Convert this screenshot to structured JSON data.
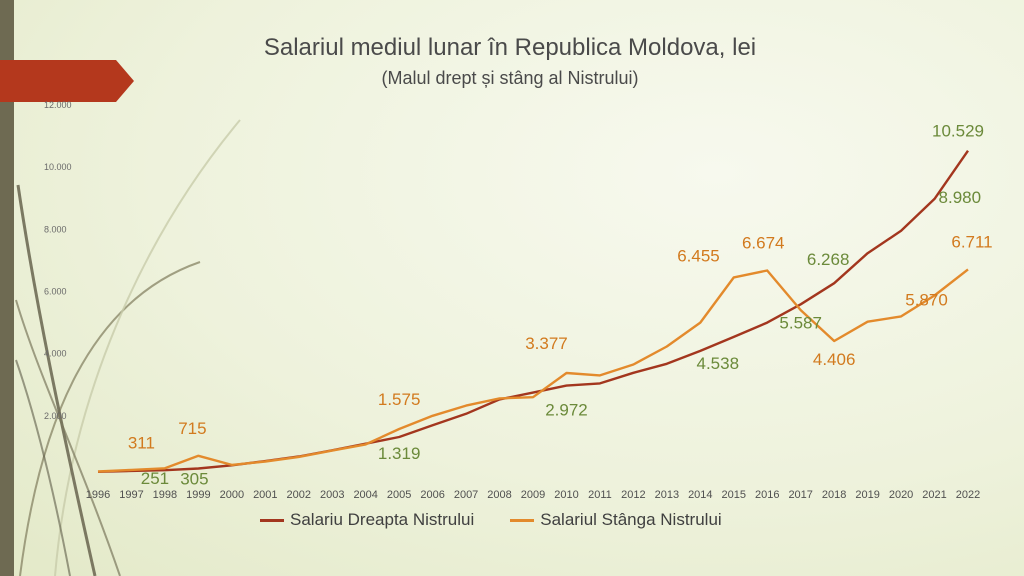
{
  "title": "Salariul mediul lunar în Republica Moldova, lei",
  "subtitle": "(Malul drept și stâng al Nistrului)",
  "chart_data": {
    "type": "line",
    "x": [
      "1996",
      "1997",
      "1998",
      "1999",
      "2000",
      "2001",
      "2002",
      "2003",
      "2004",
      "2005",
      "2006",
      "2007",
      "2008",
      "2009",
      "2010",
      "2011",
      "2012",
      "2013",
      "2014",
      "2015",
      "2016",
      "2017",
      "2018",
      "2019",
      "2020",
      "2021",
      "2022"
    ],
    "ylim": [
      0,
      12000
    ],
    "yticks": [
      "12.000",
      "10.000",
      "8.000",
      "6.000",
      "4.000",
      "2.000"
    ],
    "ytick_values": [
      12000,
      10000,
      8000,
      6000,
      4000,
      2000
    ],
    "grid": false,
    "legend_position": "bottom",
    "series": [
      {
        "name": "Salariu Dreapta Nistrului",
        "color": "#a3361e",
        "label_color": "#6b8a3a",
        "values": [
          200,
          230,
          251,
          305,
          408,
          543,
          691,
          891,
          1103,
          1319,
          1698,
          2065,
          2530,
          2748,
          2972,
          3042,
          3386,
          3674,
          4090,
          4538,
          4998,
          5587,
          6268,
          7233,
          7953,
          8980,
          10529
        ]
      },
      {
        "name": "Salariul Stânga Nistrului",
        "color": "#e38a2c",
        "label_color": "#d27a1e",
        "values": [
          210,
          260,
          311,
          715,
          420,
          530,
          680,
          880,
          1080,
          1575,
          2000,
          2330,
          2560,
          2600,
          3377,
          3300,
          3650,
          4230,
          5000,
          6455,
          6674,
          5400,
          4406,
          5030,
          5200,
          5870,
          6711
        ]
      }
    ],
    "annotations": [
      {
        "text": "311",
        "series": 1,
        "index": 2
      },
      {
        "text": "715",
        "series": 1,
        "index": 3
      },
      {
        "text": "251",
        "series": 0,
        "index": 2
      },
      {
        "text": "305",
        "series": 0,
        "index": 3
      },
      {
        "text": "1.575",
        "series": 1,
        "index": 9
      },
      {
        "text": "1.319",
        "series": 0,
        "index": 9
      },
      {
        "text": "3.377",
        "series": 1,
        "index": 14
      },
      {
        "text": "2.972",
        "series": 0,
        "index": 14
      },
      {
        "text": "6.455",
        "series": 1,
        "index": 19
      },
      {
        "text": "4.538",
        "series": 0,
        "index": 19
      },
      {
        "text": "6.674",
        "series": 1,
        "index": 20
      },
      {
        "text": "5.587",
        "series": 0,
        "index": 21
      },
      {
        "text": "6.268",
        "series": 0,
        "index": 22
      },
      {
        "text": "4.406",
        "series": 1,
        "index": 22
      },
      {
        "text": "5.870",
        "series": 1,
        "index": 25
      },
      {
        "text": "8.980",
        "series": 0,
        "index": 25
      },
      {
        "text": "10.529",
        "series": 0,
        "index": 26
      },
      {
        "text": "6.711",
        "series": 1,
        "index": 26
      }
    ]
  }
}
